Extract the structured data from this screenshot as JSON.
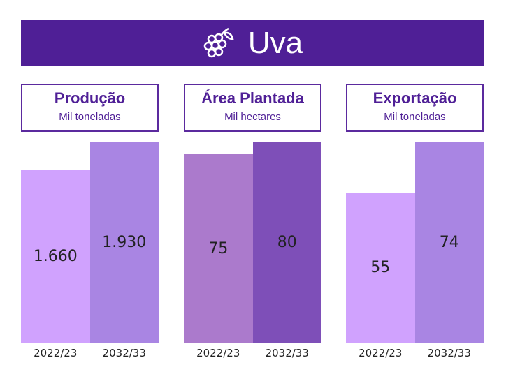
{
  "header": {
    "title": "Uva",
    "icon": "grapes-icon"
  },
  "chart_data": [
    {
      "type": "bar",
      "title": "Produção",
      "subtitle": "Mil toneladas",
      "categories": [
        "2022/23",
        "2032/33"
      ],
      "values": [
        1660,
        1930
      ],
      "labels": [
        "1.660",
        "1.930"
      ],
      "colors": [
        "#D0A2FE",
        "#A985E3"
      ]
    },
    {
      "type": "bar",
      "title": "Área Plantada",
      "subtitle": "Mil hectares",
      "categories": [
        "2022/23",
        "2032/33"
      ],
      "values": [
        75,
        80
      ],
      "labels": [
        "75",
        "80"
      ],
      "colors": [
        "#AB7ACC",
        "#7E4FB8"
      ]
    },
    {
      "type": "bar",
      "title": "Exportação",
      "subtitle": "Mil toneladas",
      "categories": [
        "2022/23",
        "2032/33"
      ],
      "values": [
        55,
        74
      ],
      "labels": [
        "55",
        "74"
      ],
      "colors": [
        "#D0A2FE",
        "#A985E3"
      ]
    }
  ]
}
